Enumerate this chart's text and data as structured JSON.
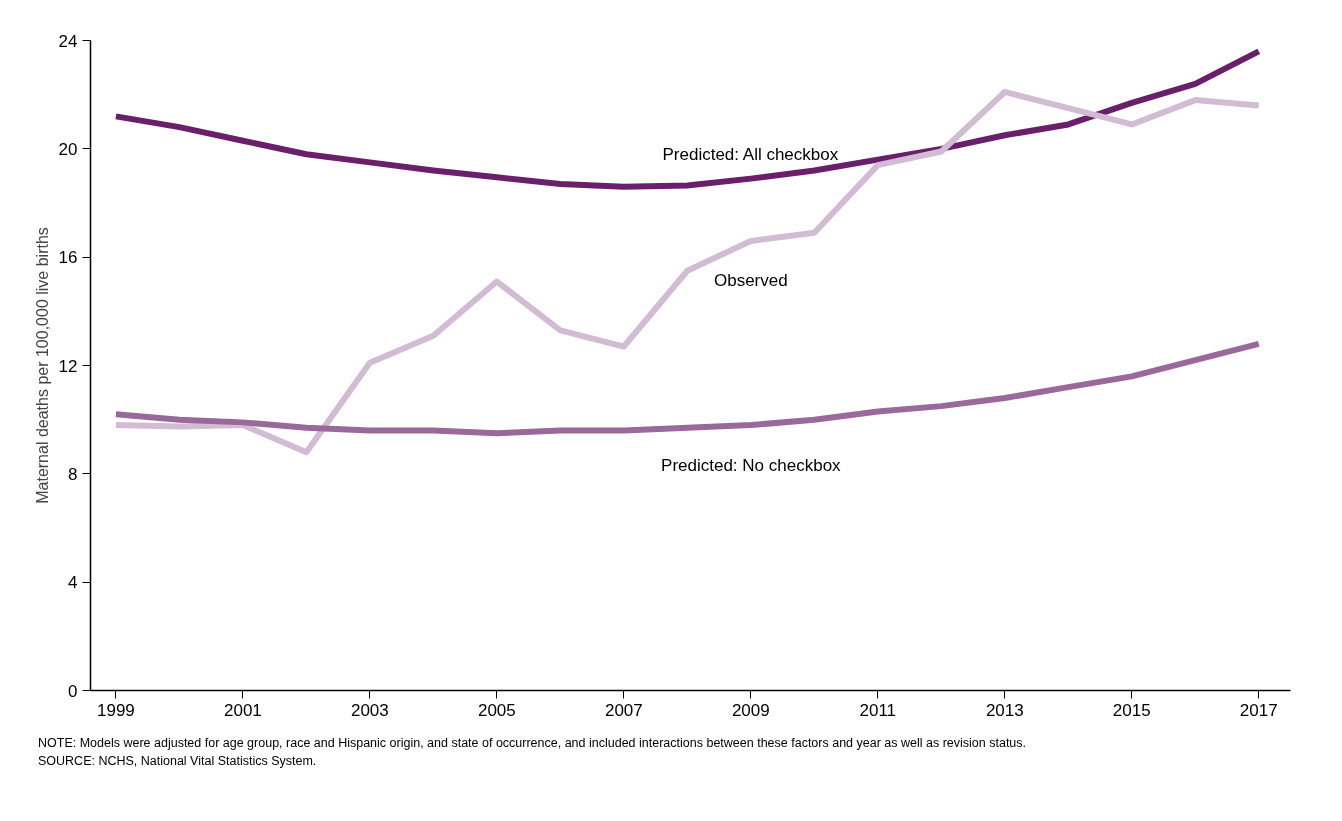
{
  "chart_data": {
    "type": "line",
    "ylabel": "Maternal deaths per 100,000 live births",
    "x": [
      1999,
      2000,
      2001,
      2002,
      2003,
      2004,
      2005,
      2006,
      2007,
      2008,
      2009,
      2010,
      2011,
      2012,
      2013,
      2014,
      2015,
      2016,
      2017
    ],
    "series": [
      {
        "name": "Predicted: All checkbox",
        "color": "#6a1f6a",
        "values": [
          21.2,
          20.8,
          20.3,
          19.8,
          19.5,
          19.2,
          18.95,
          18.7,
          18.6,
          18.65,
          18.9,
          19.2,
          19.6,
          20.0,
          20.5,
          20.9,
          21.7,
          22.4,
          23.6
        ]
      },
      {
        "name": "Observed",
        "color": "#d2bcd3",
        "values": [
          9.8,
          9.75,
          9.8,
          8.8,
          12.1,
          13.1,
          15.1,
          13.3,
          12.7,
          15.5,
          16.6,
          16.9,
          19.4,
          19.9,
          22.1,
          21.5,
          20.9,
          21.8,
          21.6
        ]
      },
      {
        "name": "Predicted: No checkbox",
        "color": "#98699a",
        "values": [
          10.2,
          10.0,
          9.9,
          9.7,
          9.6,
          9.6,
          9.5,
          9.6,
          9.6,
          9.7,
          9.8,
          10.0,
          10.3,
          10.5,
          10.8,
          11.2,
          11.6,
          12.2,
          12.8
        ]
      }
    ],
    "xlim": [
      1998.6,
      2017.5
    ],
    "xticks": [
      1999,
      2001,
      2003,
      2005,
      2007,
      2009,
      2011,
      2013,
      2015,
      2017
    ],
    "ylim": [
      0,
      24
    ],
    "yticks": [
      0,
      4,
      8,
      12,
      16,
      20,
      24
    ],
    "grid": false,
    "legend": false,
    "line_style": "solid",
    "annotations": [
      "NOTE: Models were adjusted for age group, race and Hispanic origin, and state of occurrence, and included interactions between these factors and year as well as revision status.",
      "SOURCE: NCHS, National Vital Statistics System."
    ]
  }
}
